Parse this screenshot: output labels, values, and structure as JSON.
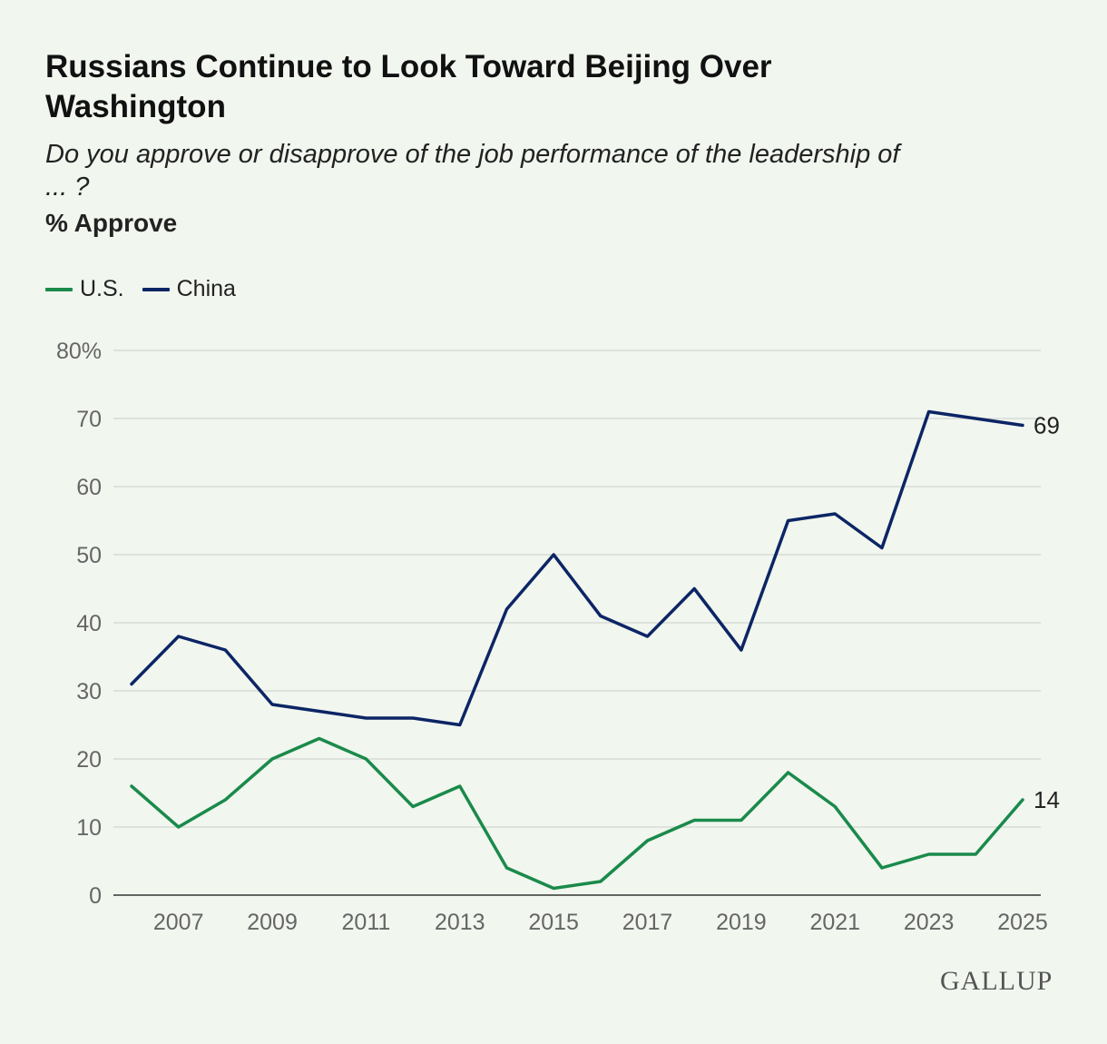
{
  "title": "Russians Continue to Look Toward Beijing Over Washington",
  "subtitle": "Do you approve or disapprove of the job performance of the leadership of ... ?",
  "unit_label": "% Approve",
  "logo": "GALLUP",
  "colors": {
    "us": "#1a8a4a",
    "china": "#0c2565",
    "grid": "#d7dcd6"
  },
  "chart_data": {
    "type": "line",
    "title": "Russians Continue to Look Toward Beijing Over Washington",
    "ylabel": "% Approve",
    "ylim": [
      0,
      80
    ],
    "yticks": [
      0,
      10,
      20,
      30,
      40,
      50,
      60,
      70,
      80
    ],
    "ytick_labels": [
      "0",
      "10",
      "20",
      "30",
      "40",
      "50",
      "60",
      "70",
      "80%"
    ],
    "xlim": [
      2006,
      2025
    ],
    "xticks": [
      2007,
      2009,
      2011,
      2013,
      2015,
      2017,
      2019,
      2021,
      2023,
      2025
    ],
    "xtick_labels": [
      "2007",
      "2009",
      "2011",
      "2013",
      "2015",
      "2017",
      "2019",
      "2021",
      "2023",
      "2025"
    ],
    "x": [
      2006,
      2007,
      2008,
      2009,
      2010,
      2011,
      2012,
      2013,
      2014,
      2015,
      2016,
      2017,
      2018,
      2019,
      2020,
      2021,
      2022,
      2023,
      2024,
      2025
    ],
    "legend": "top-left",
    "series": [
      {
        "key": "us",
        "name": "U.S.",
        "end_label": "14",
        "values": [
          16,
          10,
          14,
          20,
          23,
          20,
          13,
          16,
          4,
          1,
          2,
          8,
          11,
          11,
          18,
          13,
          4,
          6,
          6,
          14
        ]
      },
      {
        "key": "china",
        "name": "China",
        "end_label": "69",
        "values": [
          31,
          38,
          36,
          28,
          27,
          26,
          26,
          25,
          42,
          50,
          41,
          38,
          45,
          36,
          55,
          56,
          51,
          71,
          70,
          69
        ]
      }
    ]
  }
}
